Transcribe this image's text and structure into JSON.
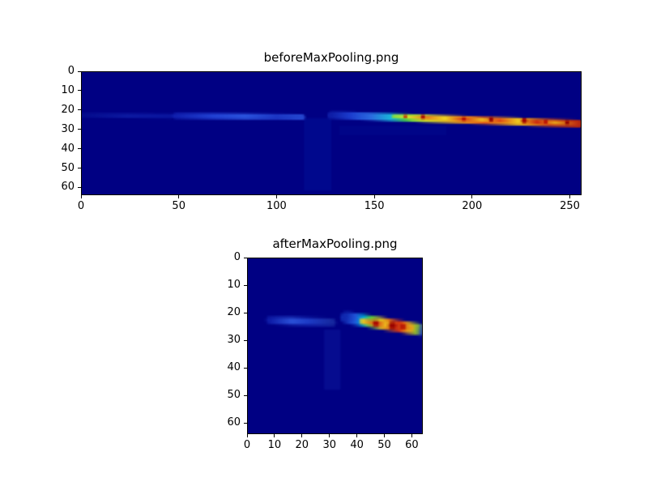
{
  "figure": {
    "background_color": "#ffffff"
  },
  "chart_data": [
    {
      "type": "heatmap",
      "title": "beforeMaxPooling.png",
      "xlabel": "",
      "ylabel": "",
      "x_ticks": [
        0,
        50,
        100,
        150,
        200,
        250
      ],
      "y_ticks": [
        0,
        10,
        20,
        30,
        40,
        50,
        60
      ],
      "x_range": [
        0,
        256
      ],
      "y_range": [
        0,
        64
      ],
      "colormap": "jet",
      "background_value_color": "#000083",
      "grid": false,
      "patches": [
        {
          "x": 114,
          "y": 24,
          "w": 14,
          "h": 38,
          "color": "#000f97",
          "alpha": 0.5
        },
        {
          "x": 132,
          "y": 28,
          "w": 55,
          "h": 5,
          "color": "#000d92",
          "alpha": 0.4
        }
      ],
      "streaks": [
        {
          "x0": 1,
          "x1": 46,
          "y0": 22.5,
          "y1": 23.0,
          "thickness": 2.6,
          "alpha": 0.9,
          "stops": [
            [
              0,
              "#050d8f"
            ],
            [
              0.5,
              "#0d1ba3"
            ],
            [
              1,
              "#0a16a0"
            ]
          ]
        },
        {
          "x0": 48,
          "x1": 113,
          "y0": 22.8,
          "y1": 23.5,
          "thickness": 3.2,
          "alpha": 1,
          "stops": [
            [
              0,
              "#101fae"
            ],
            [
              0.3,
              "#2140d2"
            ],
            [
              0.55,
              "#2a52dc"
            ],
            [
              0.8,
              "#1c36c4"
            ],
            [
              1,
              "#2446cf"
            ]
          ]
        },
        {
          "x0": 128,
          "x1": 255,
          "y0": 22.6,
          "y1": 27.0,
          "thickness": 4.0,
          "alpha": 1,
          "stops": [
            [
              0,
              "#0e1da6"
            ],
            [
              0.08,
              "#1c3ecf"
            ],
            [
              0.16,
              "#2b6be0"
            ],
            [
              0.24,
              "#19b4d8"
            ],
            [
              0.3,
              "#3ec84e"
            ],
            [
              0.38,
              "#c8dc28"
            ],
            [
              0.5,
              "#e8a41c"
            ],
            [
              0.62,
              "#e05818"
            ],
            [
              0.75,
              "#e8b81c"
            ],
            [
              0.88,
              "#d04414"
            ],
            [
              1,
              "#b42810"
            ]
          ]
        },
        {
          "x0": 160,
          "x1": 254,
          "y0": 23.2,
          "y1": 26.8,
          "thickness": 1.8,
          "alpha": 1,
          "stops": [
            [
              0,
              "#8ae03a"
            ],
            [
              0.08,
              "#e8e428"
            ],
            [
              0.18,
              "#e87818"
            ],
            [
              0.28,
              "#f0d824"
            ],
            [
              0.38,
              "#d83414"
            ],
            [
              0.48,
              "#f0c020"
            ],
            [
              0.58,
              "#e04414"
            ],
            [
              0.68,
              "#f0d020"
            ],
            [
              0.78,
              "#cc2410"
            ],
            [
              0.88,
              "#e8a81c"
            ],
            [
              1,
              "#c03010"
            ]
          ]
        }
      ],
      "speckles": [
        {
          "x": 166,
          "y": 23.2,
          "r": 0.9,
          "color": "#c81800"
        },
        {
          "x": 175,
          "y": 23.4,
          "r": 1.1,
          "color": "#a80000"
        },
        {
          "x": 196,
          "y": 24.4,
          "r": 1.0,
          "color": "#b00000"
        },
        {
          "x": 210,
          "y": 24.8,
          "r": 1.2,
          "color": "#980000"
        },
        {
          "x": 227,
          "y": 25.4,
          "r": 1.4,
          "color": "#a00000"
        },
        {
          "x": 238,
          "y": 26.0,
          "r": 1.0,
          "color": "#b40000"
        },
        {
          "x": 249,
          "y": 26.4,
          "r": 1.1,
          "color": "#900000"
        }
      ]
    },
    {
      "type": "heatmap",
      "title": "afterMaxPooling.png",
      "xlabel": "",
      "ylabel": "",
      "x_ticks": [
        0,
        10,
        20,
        30,
        40,
        50,
        60
      ],
      "y_ticks": [
        0,
        10,
        20,
        30,
        40,
        50,
        60
      ],
      "x_range": [
        0,
        64
      ],
      "y_range": [
        0,
        64
      ],
      "colormap": "jet",
      "background_value_color": "#000083",
      "grid": false,
      "patches": [
        {
          "x": 28,
          "y": 26,
          "w": 6,
          "h": 22,
          "color": "#0a1498",
          "alpha": 0.6
        }
      ],
      "streaks": [
        {
          "x0": 8,
          "x1": 31,
          "y0": 22.6,
          "y1": 23.4,
          "thickness": 2.8,
          "alpha": 1,
          "stops": [
            [
              0,
              "#0e1ca8"
            ],
            [
              0.35,
              "#2a50d8"
            ],
            [
              0.6,
              "#1e3cc8"
            ],
            [
              1,
              "#16289f"
            ]
          ]
        },
        {
          "x0": 36,
          "x1": 64,
          "y0": 21.6,
          "y1": 26.2,
          "thickness": 4.2,
          "alpha": 1,
          "stops": [
            [
              0,
              "#1028b0"
            ],
            [
              0.12,
              "#2054d8"
            ],
            [
              0.22,
              "#00a8d8"
            ],
            [
              0.32,
              "#50c83c"
            ],
            [
              0.45,
              "#e0cc20"
            ],
            [
              0.58,
              "#e06414"
            ],
            [
              0.7,
              "#d83010"
            ],
            [
              0.82,
              "#e8ac1c"
            ],
            [
              0.93,
              "#88b830"
            ],
            [
              1,
              "#2040b8"
            ]
          ]
        },
        {
          "x0": 42,
          "x1": 60,
          "y0": 23.0,
          "y1": 25.4,
          "thickness": 2.0,
          "alpha": 1,
          "stops": [
            [
              0,
              "#e8d020"
            ],
            [
              0.3,
              "#d84414"
            ],
            [
              0.5,
              "#f0c820"
            ],
            [
              0.7,
              "#c82810"
            ],
            [
              1,
              "#e8a018"
            ]
          ]
        }
      ],
      "speckles": [
        {
          "x": 47,
          "y": 23.8,
          "r": 1.1,
          "color": "#a80000"
        },
        {
          "x": 53,
          "y": 24.6,
          "r": 1.3,
          "color": "#980000"
        },
        {
          "x": 57,
          "y": 25.0,
          "r": 0.9,
          "color": "#b00000"
        }
      ]
    }
  ]
}
